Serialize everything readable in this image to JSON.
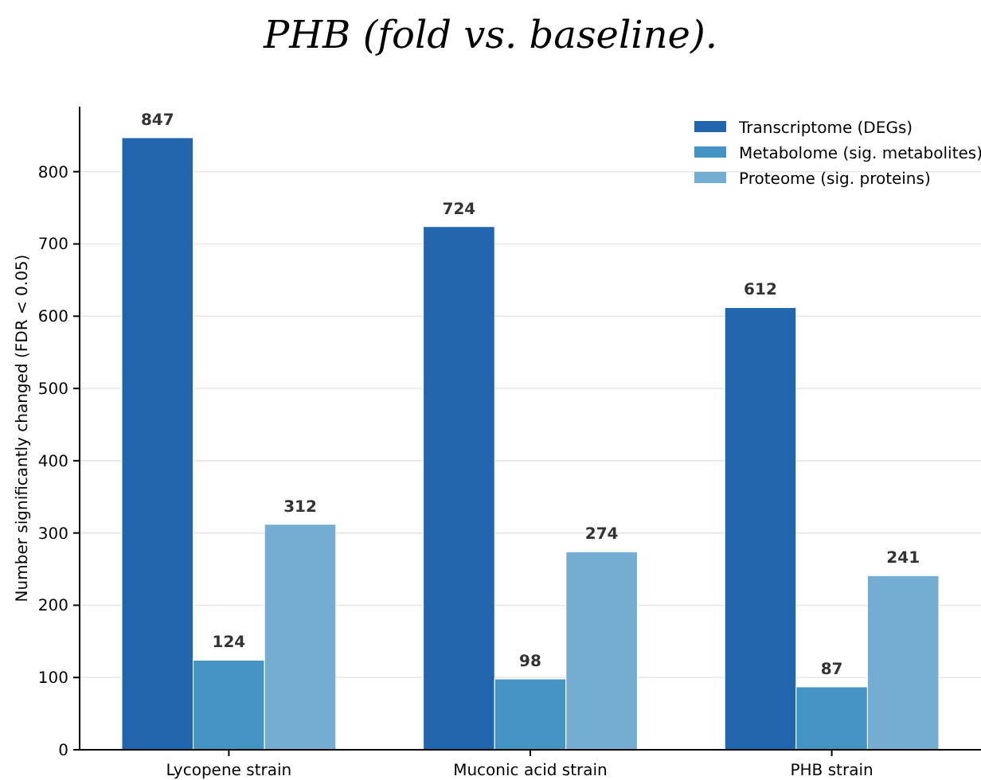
{
  "chart_data": {
    "type": "bar",
    "title": "PHB (fold vs. baseline).",
    "ylabel": "Number significantly changed (FDR < 0.05)",
    "categories": [
      "Lycopene strain",
      "Muconic acid strain",
      "PHB strain"
    ],
    "series": [
      {
        "name": "Transcriptome (DEGs)",
        "color": "#2166ac",
        "values": [
          847,
          724,
          612
        ]
      },
      {
        "name": "Metabolome (sig. metabolites)",
        "color": "#4393c3",
        "values": [
          124,
          98,
          87
        ]
      },
      {
        "name": "Proteome (sig. proteins)",
        "color": "#74add1",
        "values": [
          312,
          274,
          241
        ]
      }
    ],
    "ylim": [
      0,
      890
    ],
    "yticks": [
      0,
      100,
      200,
      300,
      400,
      500,
      600,
      700,
      800
    ],
    "grid": "y",
    "legend": "top right",
    "data_labels": true
  }
}
